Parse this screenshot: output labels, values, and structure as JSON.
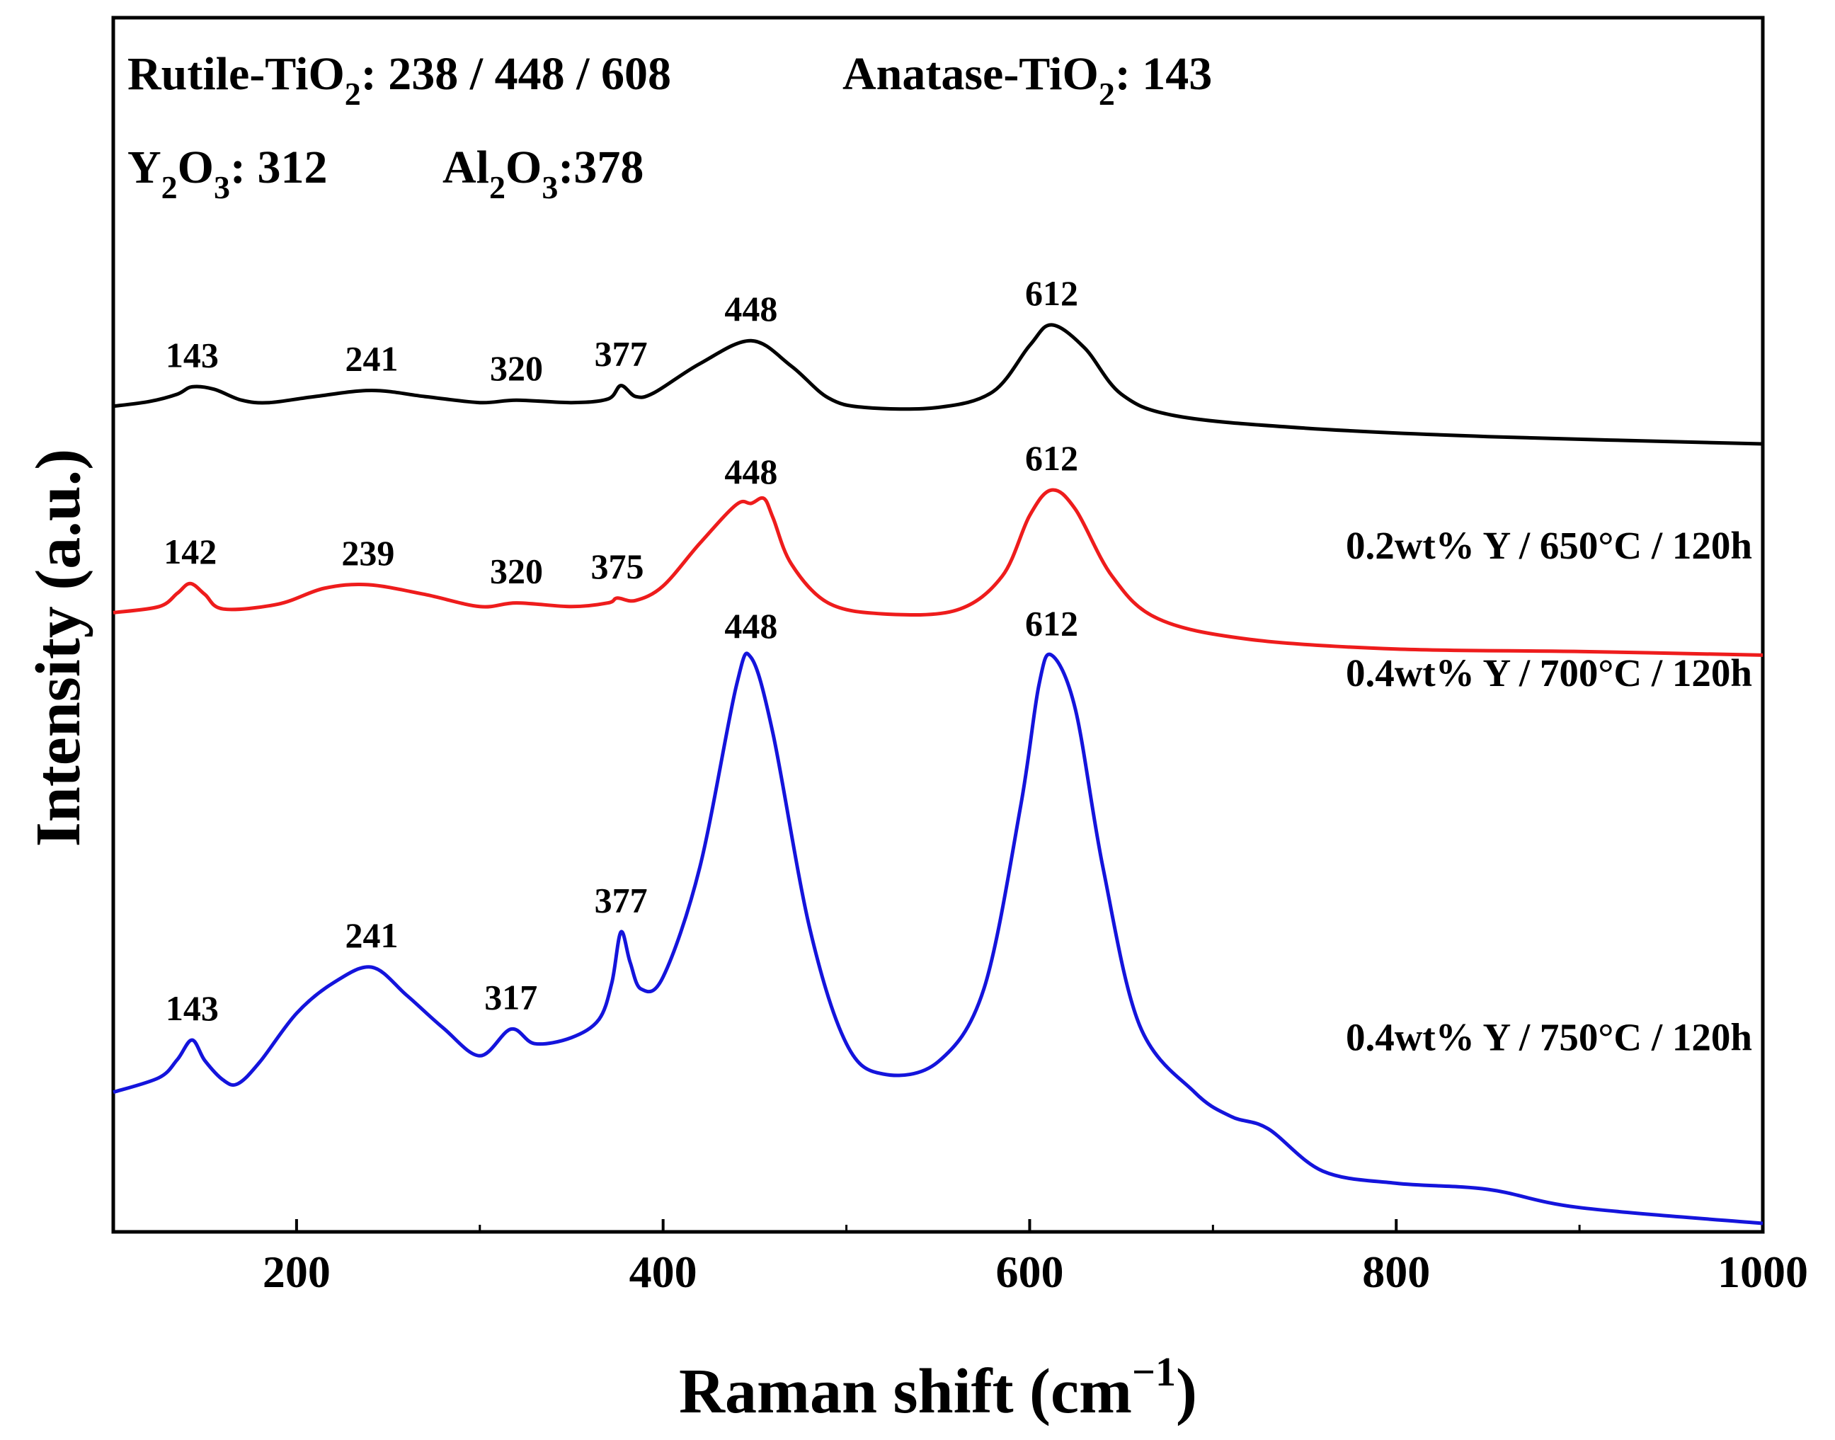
{
  "chart_data": {
    "type": "line",
    "xlabel": "Raman shift (cm",
    "xlabel_sup": "−1",
    "xlabel_close": ")",
    "ylabel": "Intensity (a.u.)",
    "xlim": [
      100,
      1000
    ],
    "ylim": [
      0,
      1
    ],
    "xticks": [
      "200",
      "400",
      "600",
      "800",
      "1000"
    ],
    "reference_text": {
      "line1": {
        "rutile": "Rutile-TiO",
        "rutile_sub": "2",
        "rutile_vals": ": 238 / 448 / 608",
        "anatase": "Anatase-TiO",
        "anatase_sub": "2",
        "anatase_vals": ": 143"
      },
      "line2": {
        "y_a": "Y",
        "y_sub1": "2",
        "y_b": "O",
        "y_sub2": "3",
        "y_vals": ": 312",
        "al_a": "Al",
        "al_sub1": "2",
        "al_b": "O",
        "al_sub2": "3",
        "al_vals": ":378"
      }
    },
    "series": [
      {
        "name": "0.2wt% Y / 650°C / 120h",
        "color": "#000000",
        "points": [
          [
            100,
            0.68
          ],
          [
            120,
            0.684
          ],
          [
            135,
            0.69
          ],
          [
            143,
            0.696
          ],
          [
            155,
            0.694
          ],
          [
            170,
            0.685
          ],
          [
            185,
            0.683
          ],
          [
            210,
            0.688
          ],
          [
            241,
            0.693
          ],
          [
            270,
            0.688
          ],
          [
            300,
            0.683
          ],
          [
            320,
            0.685
          ],
          [
            350,
            0.683
          ],
          [
            370,
            0.686
          ],
          [
            377,
            0.697
          ],
          [
            385,
            0.688
          ],
          [
            395,
            0.691
          ],
          [
            420,
            0.715
          ],
          [
            448,
            0.734
          ],
          [
            470,
            0.713
          ],
          [
            490,
            0.687
          ],
          [
            510,
            0.679
          ],
          [
            550,
            0.679
          ],
          [
            580,
            0.692
          ],
          [
            600,
            0.73
          ],
          [
            612,
            0.747
          ],
          [
            630,
            0.728
          ],
          [
            650,
            0.69
          ],
          [
            680,
            0.672
          ],
          [
            750,
            0.662
          ],
          [
            850,
            0.655
          ],
          [
            1000,
            0.649
          ]
        ],
        "peaks": [
          {
            "x": 143,
            "label": "143"
          },
          {
            "x": 241,
            "label": "241"
          },
          {
            "x": 320,
            "label": "320"
          },
          {
            "x": 377,
            "label": "377"
          },
          {
            "x": 448,
            "label": "448"
          },
          {
            "x": 612,
            "label": "612"
          }
        ]
      },
      {
        "name": "0.4wt% Y / 700°C / 120h",
        "color": "#ee1c1c",
        "points": [
          [
            100,
            0.51
          ],
          [
            125,
            0.515
          ],
          [
            135,
            0.526
          ],
          [
            142,
            0.534
          ],
          [
            150,
            0.525
          ],
          [
            160,
            0.513
          ],
          [
            190,
            0.517
          ],
          [
            215,
            0.53
          ],
          [
            239,
            0.533
          ],
          [
            270,
            0.525
          ],
          [
            300,
            0.515
          ],
          [
            320,
            0.518
          ],
          [
            350,
            0.515
          ],
          [
            370,
            0.518
          ],
          [
            375,
            0.522
          ],
          [
            385,
            0.52
          ],
          [
            400,
            0.532
          ],
          [
            420,
            0.567
          ],
          [
            440,
            0.599
          ],
          [
            448,
            0.6
          ],
          [
            455,
            0.604
          ],
          [
            460,
            0.588
          ],
          [
            470,
            0.55
          ],
          [
            490,
            0.518
          ],
          [
            520,
            0.509
          ],
          [
            560,
            0.512
          ],
          [
            585,
            0.54
          ],
          [
            600,
            0.59
          ],
          [
            612,
            0.611
          ],
          [
            625,
            0.595
          ],
          [
            645,
            0.54
          ],
          [
            670,
            0.505
          ],
          [
            720,
            0.488
          ],
          [
            800,
            0.48
          ],
          [
            900,
            0.478
          ],
          [
            1000,
            0.475
          ]
        ],
        "peaks": [
          {
            "x": 142,
            "label": "142"
          },
          {
            "x": 239,
            "label": "239"
          },
          {
            "x": 320,
            "label": "320"
          },
          {
            "x": 375,
            "label": "375"
          },
          {
            "x": 448,
            "label": "448"
          },
          {
            "x": 612,
            "label": "612"
          }
        ]
      },
      {
        "name": "0.4wt% Y / 750°C / 120h",
        "color": "#1414dc",
        "points": [
          [
            100,
            0.115
          ],
          [
            125,
            0.127
          ],
          [
            135,
            0.142
          ],
          [
            143,
            0.158
          ],
          [
            150,
            0.141
          ],
          [
            160,
            0.125
          ],
          [
            168,
            0.122
          ],
          [
            180,
            0.14
          ],
          [
            200,
            0.18
          ],
          [
            220,
            0.205
          ],
          [
            241,
            0.218
          ],
          [
            260,
            0.195
          ],
          [
            280,
            0.168
          ],
          [
            300,
            0.145
          ],
          [
            317,
            0.167
          ],
          [
            330,
            0.155
          ],
          [
            350,
            0.16
          ],
          [
            365,
            0.175
          ],
          [
            372,
            0.205
          ],
          [
            377,
            0.247
          ],
          [
            382,
            0.222
          ],
          [
            388,
            0.2
          ],
          [
            400,
            0.21
          ],
          [
            420,
            0.3
          ],
          [
            440,
            0.45
          ],
          [
            448,
            0.473
          ],
          [
            460,
            0.41
          ],
          [
            480,
            0.25
          ],
          [
            500,
            0.155
          ],
          [
            520,
            0.13
          ],
          [
            550,
            0.14
          ],
          [
            575,
            0.2
          ],
          [
            595,
            0.35
          ],
          [
            605,
            0.45
          ],
          [
            612,
            0.475
          ],
          [
            625,
            0.43
          ],
          [
            640,
            0.3
          ],
          [
            660,
            0.17
          ],
          [
            690,
            0.115
          ],
          [
            710,
            0.095
          ],
          [
            730,
            0.085
          ],
          [
            760,
            0.05
          ],
          [
            800,
            0.04
          ],
          [
            850,
            0.035
          ],
          [
            900,
            0.02
          ],
          [
            1000,
            0.007
          ]
        ],
        "peaks": [
          {
            "x": 143,
            "label": "143"
          },
          {
            "x": 241,
            "label": "241"
          },
          {
            "x": 317,
            "label": "317"
          },
          {
            "x": 377,
            "label": "377"
          },
          {
            "x": 448,
            "label": "448"
          },
          {
            "x": 612,
            "label": "612"
          }
        ]
      }
    ]
  }
}
